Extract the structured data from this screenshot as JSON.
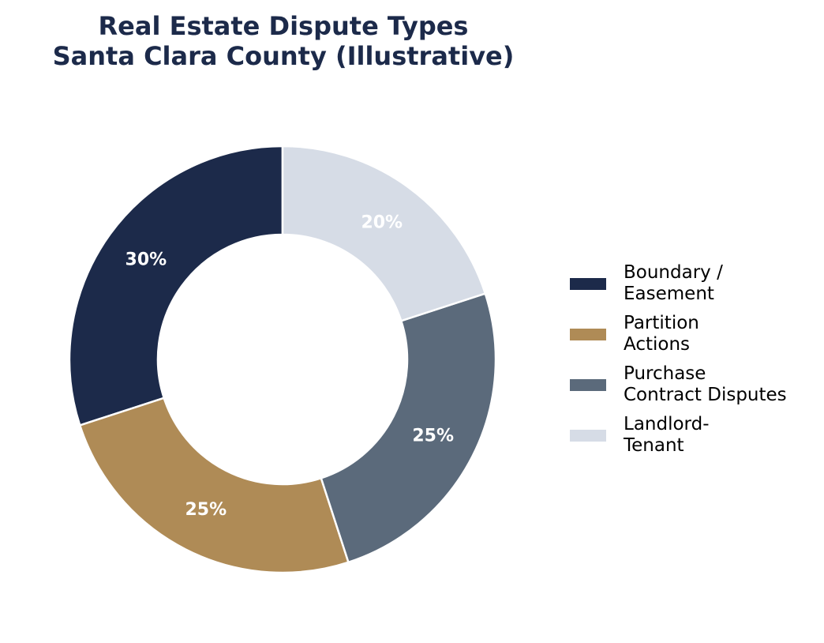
{
  "chart_data": {
    "type": "pie",
    "variant": "donut",
    "title_lines": [
      "Real Estate Dispute Types",
      "Santa Clara County (Illustrative)"
    ],
    "labels": [
      "Boundary / Easement",
      "Partition Actions",
      "Purchase Contract Disputes",
      "Landlord-Tenant"
    ],
    "legend_lines": [
      [
        "Boundary /",
        "Easement"
      ],
      [
        "Partition",
        "Actions"
      ],
      [
        "Purchase",
        "Contract Disputes"
      ],
      [
        "Landlord-",
        "Tenant"
      ]
    ],
    "values": [
      30,
      25,
      25,
      20
    ],
    "value_labels": [
      "30%",
      "25%",
      "25%",
      "20%"
    ],
    "colors": [
      "#1c2a4a",
      "#af8b56",
      "#5b6a7b",
      "#d6dce6"
    ],
    "start_angle_deg": 90,
    "direction": "counterclockwise",
    "legend_position": "right"
  }
}
